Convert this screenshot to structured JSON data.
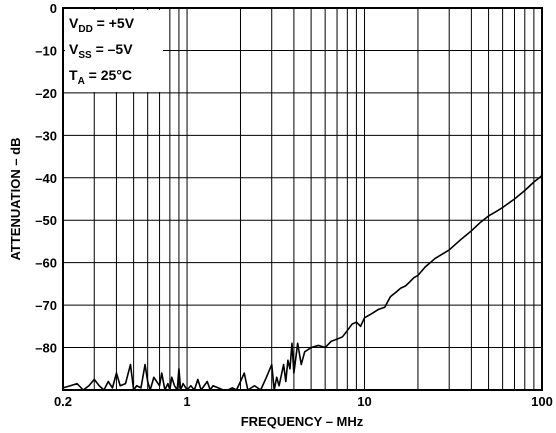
{
  "chart_data": {
    "type": "line",
    "title": "",
    "xlabel": "FREQUENCY – MHz",
    "ylabel": "ATTENUATION – dB",
    "xscale": "log",
    "xlim": [
      0.2,
      100
    ],
    "ylim": [
      -90,
      0
    ],
    "grid": true,
    "x_tick_labels": [
      {
        "value": 0.2,
        "label": "0.2"
      },
      {
        "value": 1,
        "label": "1"
      },
      {
        "value": 10,
        "label": "10"
      },
      {
        "value": 100,
        "label": "100"
      }
    ],
    "y_tick_labels": [
      {
        "value": 0,
        "label": "0"
      },
      {
        "value": -10,
        "label": "–10"
      },
      {
        "value": -20,
        "label": "–20"
      },
      {
        "value": -30,
        "label": "–30"
      },
      {
        "value": -40,
        "label": "–40"
      },
      {
        "value": -50,
        "label": "–50"
      },
      {
        "value": -60,
        "label": "–60"
      },
      {
        "value": -70,
        "label": "–70"
      },
      {
        "value": -80,
        "label": "–80"
      }
    ],
    "x_grid": [
      0.2,
      0.3,
      0.4,
      0.5,
      0.6,
      0.7,
      0.8,
      0.9,
      1,
      2,
      3,
      4,
      5,
      6,
      7,
      8,
      9,
      10,
      20,
      30,
      40,
      50,
      60,
      70,
      80,
      90,
      100
    ],
    "y_grid": [
      0,
      -10,
      -20,
      -30,
      -40,
      -50,
      -60,
      -70,
      -80,
      -90
    ],
    "annotation": {
      "legend_position": "top-left",
      "lines": [
        {
          "main": "V",
          "sub": "DD",
          "rest": " = +5V"
        },
        {
          "main": "V",
          "sub": "SS",
          "rest": " = –5V"
        },
        {
          "main": "T",
          "sub": "A",
          "rest": " = 25°C"
        }
      ]
    },
    "series": [
      {
        "color": "#000000",
        "points": [
          [
            0.2,
            -89.5
          ],
          [
            0.22,
            -89
          ],
          [
            0.24,
            -88.5
          ],
          [
            0.26,
            -90
          ],
          [
            0.28,
            -89
          ],
          [
            0.3,
            -87.5
          ],
          [
            0.32,
            -89
          ],
          [
            0.34,
            -90
          ],
          [
            0.36,
            -88
          ],
          [
            0.38,
            -89.5
          ],
          [
            0.4,
            -86
          ],
          [
            0.42,
            -89
          ],
          [
            0.45,
            -88.5
          ],
          [
            0.48,
            -84
          ],
          [
            0.5,
            -90
          ],
          [
            0.52,
            -89
          ],
          [
            0.55,
            -89.5
          ],
          [
            0.58,
            -84
          ],
          [
            0.6,
            -88
          ],
          [
            0.62,
            -90
          ],
          [
            0.65,
            -87
          ],
          [
            0.7,
            -89
          ],
          [
            0.72,
            -86
          ],
          [
            0.75,
            -90
          ],
          [
            0.78,
            -88.5
          ],
          [
            0.8,
            -90
          ],
          [
            0.82,
            -87
          ],
          [
            0.85,
            -89
          ],
          [
            0.88,
            -90
          ],
          [
            0.9,
            -85
          ],
          [
            0.92,
            -90
          ],
          [
            0.95,
            -88.5
          ],
          [
            1.0,
            -90
          ],
          [
            1.05,
            -89
          ],
          [
            1.1,
            -90
          ],
          [
            1.15,
            -87.5
          ],
          [
            1.2,
            -90
          ],
          [
            1.3,
            -88
          ],
          [
            1.35,
            -90
          ],
          [
            1.4,
            -89
          ],
          [
            1.5,
            -89.5
          ],
          [
            1.6,
            -90
          ],
          [
            1.7,
            -90
          ],
          [
            1.8,
            -89.5
          ],
          [
            1.9,
            -90
          ],
          [
            2.0,
            -88
          ],
          [
            2.1,
            -86
          ],
          [
            2.2,
            -90
          ],
          [
            2.4,
            -89
          ],
          [
            2.6,
            -90
          ],
          [
            2.8,
            -87
          ],
          [
            3.0,
            -84
          ],
          [
            3.1,
            -90
          ],
          [
            3.2,
            -87
          ],
          [
            3.3,
            -89
          ],
          [
            3.5,
            -84
          ],
          [
            3.6,
            -88
          ],
          [
            3.7,
            -83
          ],
          [
            3.8,
            -85
          ],
          [
            3.9,
            -79
          ],
          [
            4.0,
            -86
          ],
          [
            4.2,
            -79
          ],
          [
            4.4,
            -84
          ],
          [
            4.6,
            -81
          ],
          [
            4.8,
            -80.5
          ],
          [
            5.0,
            -80
          ],
          [
            5.5,
            -79.5
          ],
          [
            6.0,
            -80
          ],
          [
            6.5,
            -78.5
          ],
          [
            7.0,
            -78
          ],
          [
            7.5,
            -77.5
          ],
          [
            8.0,
            -76
          ],
          [
            8.5,
            -74.5
          ],
          [
            9.0,
            -74
          ],
          [
            9.5,
            -75
          ],
          [
            10.0,
            -73
          ],
          [
            11.0,
            -72
          ],
          [
            12.0,
            -71
          ],
          [
            13.0,
            -70.5
          ],
          [
            14.0,
            -68
          ],
          [
            15.0,
            -67
          ],
          [
            16.0,
            -66
          ],
          [
            17.0,
            -65.5
          ],
          [
            18.0,
            -64.5
          ],
          [
            19.0,
            -63.5
          ],
          [
            20.0,
            -63
          ],
          [
            22.0,
            -61
          ],
          [
            25.0,
            -59
          ],
          [
            30.0,
            -57
          ],
          [
            35.0,
            -54.5
          ],
          [
            40.0,
            -52.5
          ],
          [
            45.0,
            -50.5
          ],
          [
            50.0,
            -49
          ],
          [
            55.0,
            -48
          ],
          [
            60.0,
            -47
          ],
          [
            70.0,
            -45
          ],
          [
            80.0,
            -43
          ],
          [
            90.0,
            -41
          ],
          [
            100.0,
            -39.5
          ]
        ]
      }
    ]
  }
}
